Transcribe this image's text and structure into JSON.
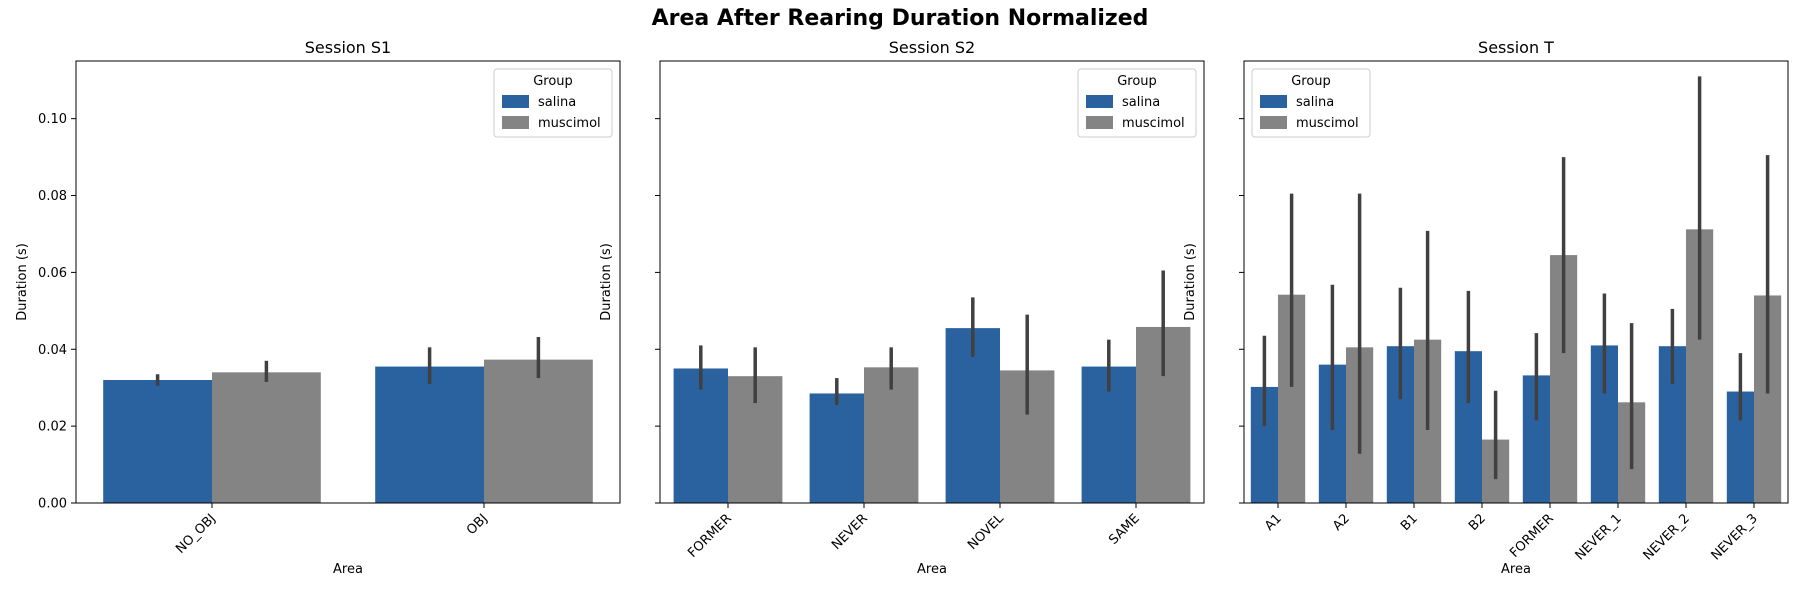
{
  "figure": {
    "title": "Area After Rearing Duration Normalized"
  },
  "chart_data": [
    {
      "type": "bar",
      "title": "Session S1",
      "xlabel": "Area",
      "ylabel": "Duration (s)",
      "ylim": [
        0,
        0.115
      ],
      "yticks": [
        0.0,
        0.02,
        0.04,
        0.06,
        0.08,
        0.1
      ],
      "ytick_labels": [
        "0.00",
        "0.02",
        "0.04",
        "0.06",
        "0.08",
        "0.10"
      ],
      "show_ytick_labels": true,
      "legend": {
        "title": "Group",
        "placement": "top-right"
      },
      "categories": [
        "NO_OBJ",
        "OBJ"
      ],
      "series": [
        {
          "name": "salina",
          "color": "#2a62a0",
          "values": [
            0.032,
            0.0355
          ],
          "err_low": [
            0.0305,
            0.031
          ],
          "err_high": [
            0.0335,
            0.0405
          ]
        },
        {
          "name": "muscimol",
          "color": "#848484",
          "values": [
            0.034,
            0.0373
          ],
          "err_low": [
            0.0315,
            0.0325
          ],
          "err_high": [
            0.037,
            0.0432
          ]
        }
      ]
    },
    {
      "type": "bar",
      "title": "Session S2",
      "xlabel": "Area",
      "ylabel": "Duration (s)",
      "ylim": [
        0,
        0.115
      ],
      "yticks": [
        0.0,
        0.02,
        0.04,
        0.06,
        0.08,
        0.1
      ],
      "ytick_labels": [
        "0.00",
        "0.02",
        "0.04",
        "0.06",
        "0.08",
        "0.10"
      ],
      "show_ytick_labels": false,
      "legend": {
        "title": "Group",
        "placement": "top-right"
      },
      "categories": [
        "FORMER",
        "NEVER",
        "NOVEL",
        "SAME"
      ],
      "series": [
        {
          "name": "salina",
          "color": "#2a62a0",
          "values": [
            0.035,
            0.0285,
            0.0455,
            0.0355
          ],
          "err_low": [
            0.0295,
            0.0255,
            0.038,
            0.029
          ],
          "err_high": [
            0.041,
            0.0325,
            0.0535,
            0.0425
          ]
        },
        {
          "name": "muscimol",
          "color": "#848484",
          "values": [
            0.033,
            0.0353,
            0.0345,
            0.0458
          ],
          "err_low": [
            0.026,
            0.0295,
            0.023,
            0.033
          ],
          "err_high": [
            0.0405,
            0.0405,
            0.049,
            0.0605
          ]
        }
      ]
    },
    {
      "type": "bar",
      "title": "Session T",
      "xlabel": "Area",
      "ylabel": "Duration (s)",
      "ylim": [
        0,
        0.115
      ],
      "yticks": [
        0.0,
        0.02,
        0.04,
        0.06,
        0.08,
        0.1
      ],
      "ytick_labels": [
        "0.00",
        "0.02",
        "0.04",
        "0.06",
        "0.08",
        "0.10"
      ],
      "show_ytick_labels": false,
      "legend": {
        "title": "Group",
        "placement": "top-left"
      },
      "categories": [
        "A1",
        "A2",
        "B1",
        "B2",
        "FORMER",
        "NEVER_1",
        "NEVER_2",
        "NEVER_3"
      ],
      "series": [
        {
          "name": "salina",
          "color": "#2a62a0",
          "values": [
            0.0302,
            0.036,
            0.0408,
            0.0395,
            0.0332,
            0.041,
            0.0408,
            0.029
          ],
          "err_low": [
            0.02,
            0.019,
            0.027,
            0.026,
            0.0215,
            0.0285,
            0.031,
            0.0215
          ],
          "err_high": [
            0.0435,
            0.0568,
            0.056,
            0.0552,
            0.0442,
            0.0545,
            0.0505,
            0.039
          ]
        },
        {
          "name": "muscimol",
          "color": "#848484",
          "values": [
            0.0542,
            0.0405,
            0.0425,
            0.0165,
            0.0645,
            0.0262,
            0.0712,
            0.054
          ],
          "err_low": [
            0.0302,
            0.0128,
            0.019,
            0.0062,
            0.039,
            0.0088,
            0.0425,
            0.0285
          ],
          "err_high": [
            0.0805,
            0.0805,
            0.0708,
            0.0292,
            0.09,
            0.0468,
            0.111,
            0.0905
          ]
        }
      ]
    }
  ]
}
